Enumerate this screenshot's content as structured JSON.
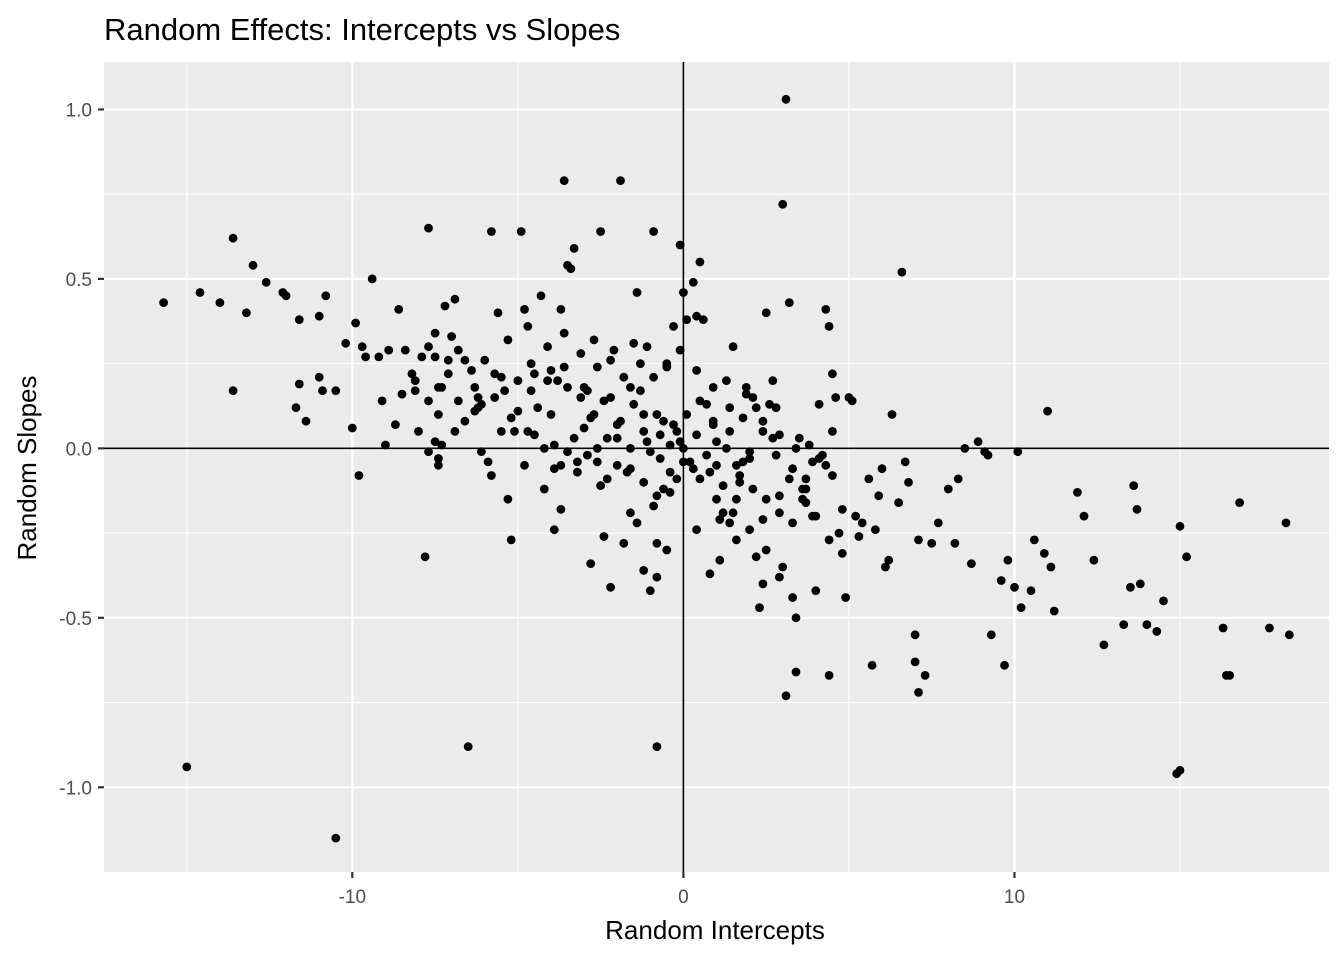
{
  "chart_data": {
    "type": "scatter",
    "title": "Random Effects: Intercepts vs Slopes",
    "xlabel": "Random Intercepts",
    "ylabel": "Random Slopes",
    "xlim": [
      -17.5,
      19.5
    ],
    "ylim": [
      -1.25,
      1.14
    ],
    "x_ticks": [
      -10,
      0,
      10
    ],
    "x_tick_labels": [
      "-10",
      "0",
      "10"
    ],
    "y_ticks": [
      -1.0,
      -0.5,
      0.0,
      0.5,
      1.0
    ],
    "y_tick_labels": [
      "-1.0",
      "-0.5",
      "0.0",
      "0.5",
      "1.0"
    ],
    "grid": true,
    "reference_lines": {
      "x": 0,
      "y": 0
    },
    "point_color": "#000000",
    "panel_background": "#ebebeb",
    "points": [
      [
        -15.7,
        0.43
      ],
      [
        -14.6,
        0.46
      ],
      [
        -14.0,
        0.43
      ],
      [
        -13.6,
        0.62
      ],
      [
        -13.6,
        0.17
      ],
      [
        -13.2,
        0.4
      ],
      [
        -13.0,
        0.54
      ],
      [
        -12.6,
        0.49
      ],
      [
        -12.1,
        0.46
      ],
      [
        -12.0,
        0.45
      ],
      [
        -11.6,
        0.38
      ],
      [
        -11.6,
        0.19
      ],
      [
        -11.4,
        0.08
      ],
      [
        -11.0,
        0.39
      ],
      [
        -11.0,
        0.21
      ],
      [
        -10.9,
        0.17
      ],
      [
        -10.8,
        0.45
      ],
      [
        -10.5,
        0.17
      ],
      [
        -11.7,
        0.12
      ],
      [
        -10.2,
        0.31
      ],
      [
        -10.0,
        0.06
      ],
      [
        -9.9,
        0.37
      ],
      [
        -9.8,
        -0.08
      ],
      [
        -9.7,
        0.3
      ],
      [
        -9.6,
        0.27
      ],
      [
        -9.4,
        0.5
      ],
      [
        -9.2,
        0.27
      ],
      [
        -9.1,
        0.14
      ],
      [
        -9.0,
        0.01
      ],
      [
        -8.9,
        0.29
      ],
      [
        -8.7,
        0.07
      ],
      [
        -8.6,
        0.41
      ],
      [
        -8.5,
        0.16
      ],
      [
        -8.4,
        0.29
      ],
      [
        -8.2,
        0.22
      ],
      [
        -8.1,
        0.2
      ],
      [
        -8.0,
        0.05
      ],
      [
        -7.9,
        0.27
      ],
      [
        -7.7,
        0.14
      ],
      [
        -7.7,
        0.3
      ],
      [
        -7.5,
        0.34
      ],
      [
        -7.5,
        0.27
      ],
      [
        -7.4,
        0.18
      ],
      [
        -7.3,
        0.18
      ],
      [
        -7.8,
        -0.32
      ],
      [
        -7.7,
        -0.01
      ],
      [
        -7.5,
        0.02
      ],
      [
        -7.4,
        -0.05
      ],
      [
        -7.4,
        -0.03
      ],
      [
        -7.3,
        0.01
      ],
      [
        -7.2,
        0.42
      ],
      [
        -7.1,
        0.26
      ],
      [
        -7.1,
        0.22
      ],
      [
        -7.0,
        0.33
      ],
      [
        -6.9,
        0.44
      ],
      [
        -6.8,
        0.29
      ],
      [
        -6.8,
        0.14
      ],
      [
        -6.6,
        0.26
      ],
      [
        -6.4,
        0.23
      ],
      [
        -6.3,
        0.18
      ],
      [
        -6.2,
        0.12
      ],
      [
        -6.2,
        0.15
      ],
      [
        -6.1,
        0.13
      ],
      [
        -6.0,
        0.26
      ],
      [
        -5.9,
        -0.04
      ],
      [
        -5.8,
        -0.08
      ],
      [
        -5.7,
        0.22
      ],
      [
        -5.6,
        0.4
      ],
      [
        -5.5,
        0.21
      ],
      [
        -5.4,
        0.17
      ],
      [
        -5.3,
        0.32
      ],
      [
        -5.2,
        -0.27
      ],
      [
        -5.1,
        0.05
      ],
      [
        -5.0,
        0.2
      ],
      [
        -4.9,
        0.64
      ],
      [
        -4.8,
        0.41
      ],
      [
        -4.7,
        0.36
      ],
      [
        -4.6,
        0.25
      ],
      [
        -4.5,
        0.22
      ],
      [
        -4.4,
        0.12
      ],
      [
        -4.3,
        0.45
      ],
      [
        -4.1,
        0.3
      ],
      [
        -4.0,
        0.23
      ],
      [
        -3.9,
        -0.24
      ],
      [
        -3.9,
        -0.06
      ],
      [
        -3.9,
        0.01
      ],
      [
        -3.8,
        0.2
      ],
      [
        -3.7,
        0.41
      ],
      [
        -3.6,
        0.34
      ],
      [
        -3.5,
        0.18
      ],
      [
        -3.5,
        0.54
      ],
      [
        -3.4,
        0.53
      ],
      [
        -3.3,
        0.59
      ],
      [
        -3.2,
        -0.04
      ],
      [
        -3.1,
        0.15
      ],
      [
        -3.0,
        0.18
      ],
      [
        -2.9,
        0.17
      ],
      [
        -2.8,
        -0.34
      ],
      [
        -2.7,
        0.1
      ],
      [
        -2.6,
        0.24
      ],
      [
        -2.6,
        -0.04
      ],
      [
        -2.5,
        -0.11
      ],
      [
        -2.4,
        -0.26
      ],
      [
        -2.3,
        -0.09
      ],
      [
        -2.2,
        0.15
      ],
      [
        -2.1,
        0.29
      ],
      [
        -2.0,
        0.07
      ],
      [
        -1.9,
        0.79
      ],
      [
        -1.8,
        -0.28
      ],
      [
        -1.7,
        -0.07
      ],
      [
        -1.6,
        0.18
      ],
      [
        -1.5,
        0.31
      ],
      [
        -1.4,
        0.46
      ],
      [
        -1.3,
        0.25
      ],
      [
        -1.2,
        0.1
      ],
      [
        -1.1,
        0.3
      ],
      [
        -1.0,
        -0.01
      ],
      [
        -0.9,
        0.64
      ],
      [
        -0.8,
        -0.28
      ],
      [
        -0.7,
        0.04
      ],
      [
        -0.6,
        0.08
      ],
      [
        -0.5,
        0.24
      ],
      [
        -0.4,
        -0.13
      ],
      [
        -0.3,
        0.36
      ],
      [
        -0.2,
        0.05
      ],
      [
        -0.1,
        0.02
      ],
      [
        -0.1,
        0.6
      ],
      [
        0.0,
        0.46
      ],
      [
        0.1,
        0.38
      ],
      [
        0.2,
        -0.04
      ],
      [
        0.3,
        0.49
      ],
      [
        0.4,
        0.39
      ],
      [
        0.5,
        0.55
      ],
      [
        0.6,
        0.38
      ],
      [
        0.7,
        0.13
      ],
      [
        0.8,
        -0.37
      ],
      [
        0.9,
        0.08
      ],
      [
        1.0,
        -0.05
      ],
      [
        1.1,
        -0.21
      ],
      [
        1.2,
        -0.19
      ],
      [
        1.3,
        0.2
      ],
      [
        1.4,
        -0.22
      ],
      [
        1.5,
        0.3
      ],
      [
        1.6,
        -0.05
      ],
      [
        1.7,
        -0.1
      ],
      [
        1.8,
        -0.04
      ],
      [
        1.9,
        0.18
      ],
      [
        2.0,
        -0.03
      ],
      [
        2.1,
        0.15
      ],
      [
        2.2,
        -0.32
      ],
      [
        2.3,
        -0.47
      ],
      [
        2.4,
        -0.4
      ],
      [
        2.5,
        0.4
      ],
      [
        2.6,
        0.13
      ],
      [
        2.7,
        0.2
      ],
      [
        2.8,
        0.12
      ],
      [
        2.9,
        -0.14
      ],
      [
        3.0,
        0.72
      ],
      [
        3.1,
        1.03
      ],
      [
        3.2,
        0.43
      ],
      [
        3.3,
        -0.44
      ],
      [
        3.4,
        -0.5
      ],
      [
        3.5,
        0.03
      ],
      [
        3.6,
        -0.12
      ],
      [
        3.7,
        -0.16
      ],
      [
        3.8,
        0.01
      ],
      [
        3.9,
        -0.2
      ],
      [
        4.0,
        -0.42
      ],
      [
        4.1,
        0.13
      ],
      [
        4.2,
        -0.02
      ],
      [
        4.3,
        0.41
      ],
      [
        4.4,
        0.36
      ],
      [
        4.5,
        0.22
      ],
      [
        4.6,
        0.15
      ],
      [
        4.7,
        -0.25
      ],
      [
        4.8,
        -0.31
      ],
      [
        4.9,
        -0.44
      ],
      [
        5.0,
        0.15
      ],
      [
        5.1,
        0.14
      ],
      [
        5.2,
        -0.2
      ],
      [
        5.4,
        -0.22
      ],
      [
        5.6,
        -0.09
      ],
      [
        5.8,
        -0.24
      ],
      [
        6.0,
        -0.06
      ],
      [
        6.1,
        -0.35
      ],
      [
        6.2,
        -0.33
      ],
      [
        6.3,
        0.1
      ],
      [
        6.5,
        -0.16
      ],
      [
        6.6,
        0.52
      ],
      [
        6.7,
        -0.04
      ],
      [
        6.8,
        -0.1
      ],
      [
        7.0,
        -0.55
      ],
      [
        7.1,
        -0.27
      ],
      [
        7.3,
        -0.67
      ],
      [
        7.5,
        -0.28
      ],
      [
        7.7,
        -0.22
      ],
      [
        8.0,
        -0.12
      ],
      [
        8.2,
        -0.28
      ],
      [
        8.3,
        -0.09
      ],
      [
        8.5,
        0.0
      ],
      [
        8.7,
        -0.34
      ],
      [
        8.9,
        0.02
      ],
      [
        9.1,
        -0.01
      ],
      [
        9.2,
        -0.02
      ],
      [
        9.3,
        -0.55
      ],
      [
        9.6,
        -0.39
      ],
      [
        9.7,
        -0.64
      ],
      [
        9.8,
        -0.33
      ],
      [
        10.0,
        -0.41
      ],
      [
        10.1,
        -0.01
      ],
      [
        10.2,
        -0.47
      ],
      [
        10.5,
        -0.42
      ],
      [
        10.6,
        -0.27
      ],
      [
        10.9,
        -0.31
      ],
      [
        11.0,
        0.11
      ],
      [
        11.1,
        -0.35
      ],
      [
        11.2,
        -0.48
      ],
      [
        11.9,
        -0.13
      ],
      [
        12.1,
        -0.2
      ],
      [
        12.4,
        -0.33
      ],
      [
        12.7,
        -0.58
      ],
      [
        13.3,
        -0.52
      ],
      [
        13.5,
        -0.41
      ],
      [
        13.6,
        -0.11
      ],
      [
        13.7,
        -0.18
      ],
      [
        13.8,
        -0.4
      ],
      [
        14.0,
        -0.52
      ],
      [
        14.3,
        -0.54
      ],
      [
        14.5,
        -0.45
      ],
      [
        14.9,
        -0.96
      ],
      [
        15.0,
        -0.23
      ],
      [
        15.2,
        -0.32
      ],
      [
        16.3,
        -0.53
      ],
      [
        16.4,
        -0.67
      ],
      [
        16.5,
        -0.67
      ],
      [
        16.8,
        -0.16
      ],
      [
        17.7,
        -0.53
      ],
      [
        18.2,
        -0.22
      ],
      [
        18.3,
        -0.55
      ],
      [
        15.0,
        -0.95
      ],
      [
        -15.0,
        -0.94
      ],
      [
        -10.5,
        -1.15
      ],
      [
        -6.5,
        -0.88
      ],
      [
        -0.8,
        -0.88
      ],
      [
        3.1,
        -0.73
      ],
      [
        3.4,
        -0.66
      ],
      [
        4.4,
        -0.67
      ],
      [
        5.7,
        -0.64
      ],
      [
        7.0,
        -0.63
      ],
      [
        7.1,
        -0.72
      ],
      [
        -3.6,
        0.79
      ],
      [
        -2.5,
        0.64
      ],
      [
        -5.8,
        0.64
      ],
      [
        -7.7,
        0.65
      ],
      [
        -1.0,
        -0.42
      ],
      [
        -0.8,
        -0.38
      ],
      [
        -2.2,
        -0.41
      ],
      [
        -1.2,
        -0.36
      ],
      [
        -0.5,
        -0.3
      ],
      [
        0.4,
        -0.24
      ],
      [
        1.1,
        -0.33
      ],
      [
        1.6,
        -0.27
      ],
      [
        2.4,
        -0.21
      ],
      [
        2.9,
        -0.38
      ],
      [
        -1.6,
        -0.19
      ],
      [
        -1.4,
        -0.22
      ],
      [
        -0.9,
        -0.17
      ],
      [
        -0.6,
        -0.12
      ],
      [
        -0.2,
        -0.09
      ],
      [
        0.3,
        -0.06
      ],
      [
        0.7,
        -0.02
      ],
      [
        1.0,
        0.02
      ],
      [
        1.4,
        0.05
      ],
      [
        1.8,
        0.09
      ],
      [
        2.2,
        0.12
      ],
      [
        2.7,
        0.03
      ],
      [
        3.3,
        -0.06
      ],
      [
        3.7,
        -0.09
      ],
      [
        4.1,
        -0.03
      ],
      [
        4.5,
        0.05
      ],
      [
        -4.2,
        -0.12
      ],
      [
        -3.7,
        -0.18
      ],
      [
        -3.2,
        -0.07
      ],
      [
        -2.9,
        -0.02
      ],
      [
        -2.3,
        0.03
      ],
      [
        -1.9,
        0.08
      ],
      [
        -1.5,
        0.13
      ],
      [
        -1.1,
        0.02
      ],
      [
        -0.7,
        -0.03
      ],
      [
        -0.3,
        0.07
      ],
      [
        0.1,
        0.1
      ],
      [
        0.5,
        0.14
      ],
      [
        0.9,
        0.07
      ],
      [
        1.3,
        0.0
      ],
      [
        1.7,
        -0.08
      ],
      [
        2.1,
        -0.12
      ],
      [
        2.5,
        -0.15
      ],
      [
        2.9,
        -0.19
      ],
      [
        3.3,
        -0.22
      ],
      [
        3.7,
        -0.12
      ],
      [
        4.3,
        -0.05
      ],
      [
        4.8,
        -0.18
      ],
      [
        5.3,
        -0.26
      ],
      [
        5.9,
        -0.14
      ],
      [
        -5.3,
        -0.15
      ],
      [
        -4.8,
        -0.05
      ],
      [
        -4.5,
        0.04
      ],
      [
        -4.0,
        0.1
      ],
      [
        -3.5,
        -0.01
      ],
      [
        -3.0,
        0.06
      ],
      [
        -2.6,
        0.0
      ],
      [
        -2.0,
        -0.05
      ],
      [
        -1.6,
        0.0
      ],
      [
        -1.2,
        0.05
      ],
      [
        -0.8,
        0.1
      ],
      [
        -0.4,
        0.01
      ],
      [
        0.0,
        -0.04
      ],
      [
        0.4,
        0.04
      ],
      [
        0.8,
        -0.07
      ],
      [
        1.2,
        -0.11
      ],
      [
        1.6,
        -0.15
      ],
      [
        2.0,
        -0.01
      ],
      [
        2.4,
        0.05
      ],
      [
        2.8,
        -0.02
      ],
      [
        3.2,
        -0.09
      ],
      [
        3.6,
        -0.15
      ],
      [
        4.0,
        -0.2
      ],
      [
        4.4,
        -0.27
      ],
      [
        -6.6,
        0.08
      ],
      [
        -6.1,
        -0.01
      ],
      [
        -5.5,
        0.05
      ],
      [
        -5.0,
        0.11
      ],
      [
        -4.6,
        0.17
      ],
      [
        -4.1,
        0.2
      ],
      [
        -3.6,
        0.24
      ],
      [
        -3.1,
        0.28
      ],
      [
        -2.7,
        0.32
      ],
      [
        -2.2,
        0.26
      ],
      [
        -1.8,
        0.21
      ],
      [
        -1.3,
        0.17
      ],
      [
        -0.9,
        0.21
      ],
      [
        -0.5,
        0.25
      ],
      [
        -0.1,
        0.29
      ],
      [
        0.4,
        0.23
      ],
      [
        0.9,
        0.18
      ],
      [
        1.4,
        0.12
      ],
      [
        1.9,
        0.16
      ],
      [
        2.4,
        0.08
      ],
      [
        2.9,
        0.04
      ],
      [
        3.4,
        0.0
      ],
      [
        3.9,
        -0.04
      ],
      [
        4.5,
        -0.08
      ],
      [
        -8.1,
        0.17
      ],
      [
        -7.4,
        0.1
      ],
      [
        -6.9,
        0.05
      ],
      [
        -6.3,
        0.11
      ],
      [
        -5.7,
        0.15
      ],
      [
        -5.2,
        0.09
      ],
      [
        -4.7,
        0.05
      ],
      [
        -4.2,
        0.0
      ],
      [
        -3.7,
        -0.05
      ],
      [
        -3.3,
        0.03
      ],
      [
        -2.8,
        0.09
      ],
      [
        -2.4,
        0.14
      ],
      [
        -2.0,
        0.03
      ],
      [
        -1.6,
        -0.06
      ],
      [
        -1.2,
        -0.1
      ],
      [
        -0.8,
        -0.14
      ],
      [
        -0.4,
        -0.07
      ],
      [
        0.0,
        0.0
      ],
      [
        0.5,
        -0.09
      ],
      [
        1.0,
        -0.15
      ],
      [
        1.5,
        -0.19
      ],
      [
        2.0,
        -0.24
      ],
      [
        2.5,
        -0.3
      ],
      [
        3.0,
        -0.35
      ]
    ]
  }
}
